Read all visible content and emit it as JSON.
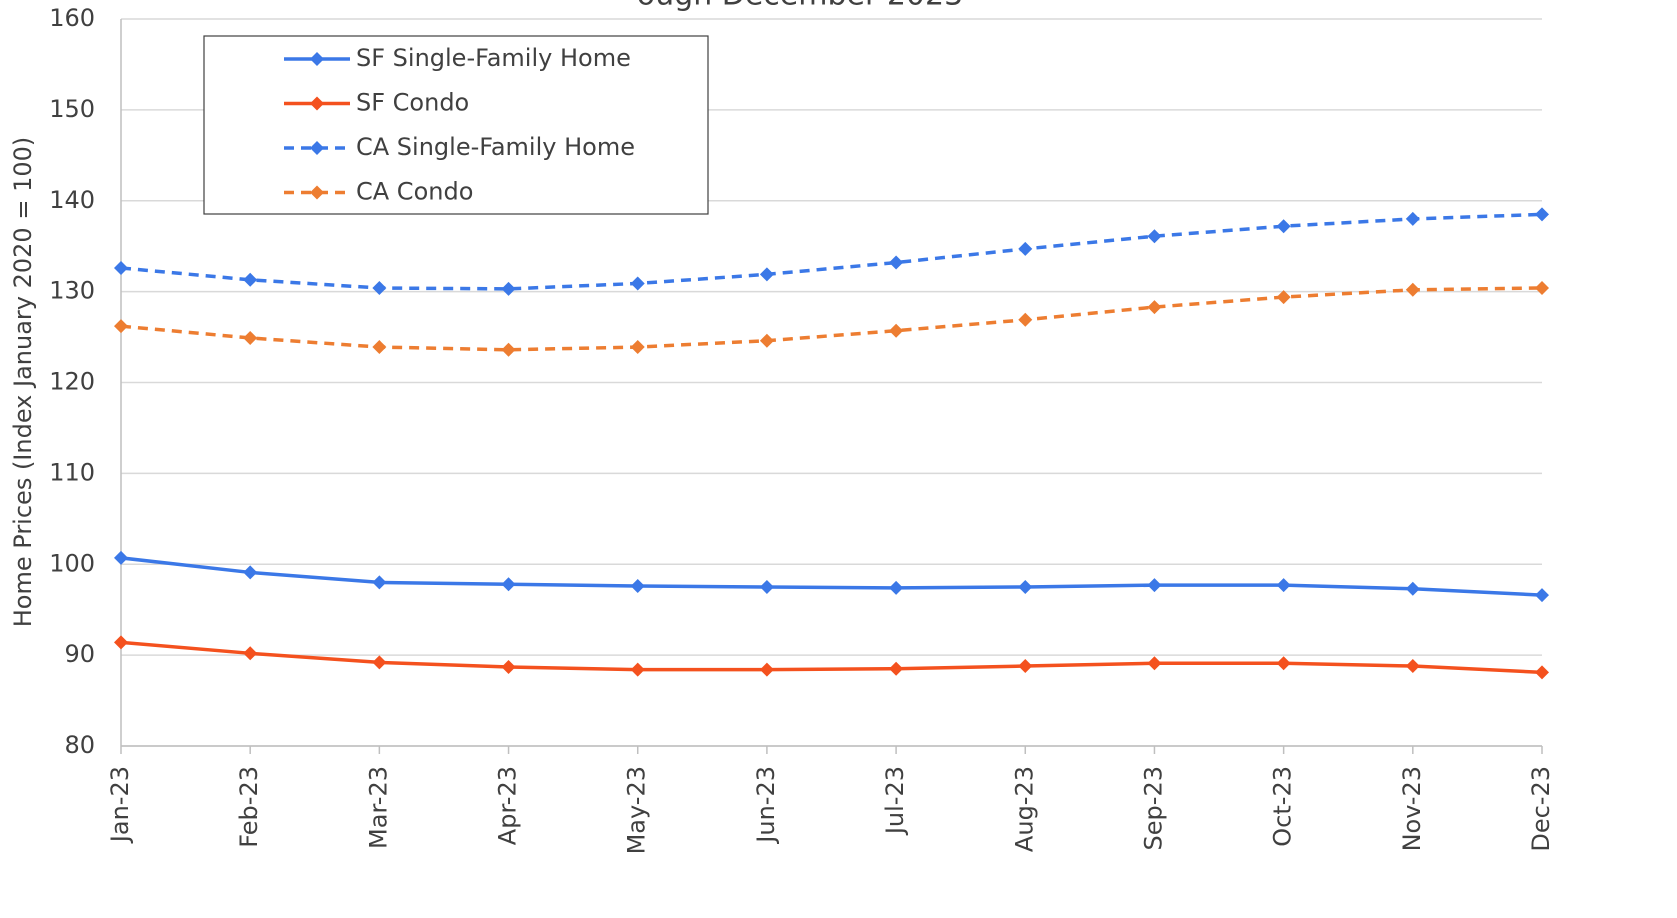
{
  "chart_data": {
    "type": "line",
    "title": "ough December 2023",
    "y_label": "Home Prices (Index January 2020 = 100)",
    "categories": [
      "Jan-23",
      "Feb-23",
      "Mar-23",
      "Apr-23",
      "May-23",
      "Jun-23",
      "Jul-23",
      "Aug-23",
      "Sep-23",
      "Oct-23",
      "Nov-23",
      "Dec-23"
    ],
    "series": [
      {
        "name": "SF Single-Family Home",
        "color": "#3b78e7",
        "dashed": false,
        "values": [
          100.7,
          99.1,
          98.0,
          97.8,
          97.6,
          97.5,
          97.4,
          97.5,
          97.7,
          97.7,
          97.3,
          96.6
        ]
      },
      {
        "name": "SF Condo",
        "color": "#f4511e",
        "dashed": false,
        "values": [
          91.4,
          90.2,
          89.2,
          88.7,
          88.4,
          88.4,
          88.5,
          88.8,
          89.1,
          89.1,
          88.8,
          88.1
        ]
      },
      {
        "name": "CA Single-Family Home",
        "color": "#3b78e7",
        "dashed": true,
        "values": [
          132.6,
          131.3,
          130.4,
          130.3,
          130.9,
          131.9,
          133.2,
          134.7,
          136.1,
          137.2,
          138.0,
          138.5
        ]
      },
      {
        "name": "CA Condo",
        "color": "#ed7d31",
        "dashed": true,
        "values": [
          126.2,
          124.9,
          123.9,
          123.6,
          123.9,
          124.6,
          125.7,
          126.9,
          128.3,
          129.4,
          130.2,
          130.4
        ]
      }
    ],
    "ylim": [
      80,
      160
    ],
    "yticks": [
      80,
      90,
      100,
      110,
      120,
      130,
      140,
      150,
      160
    ],
    "grid": true,
    "legend": "upper left"
  }
}
